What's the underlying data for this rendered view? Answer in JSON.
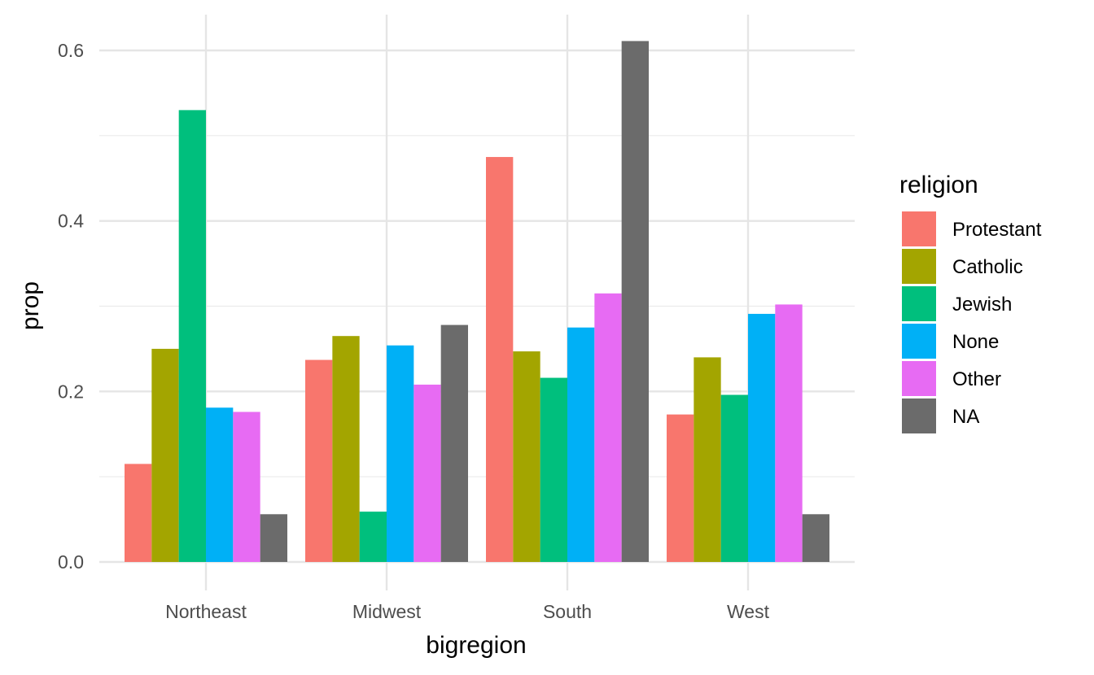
{
  "chart_data": {
    "type": "bar",
    "xlabel": "bigregion",
    "ylabel": "prop",
    "categories": [
      "Northeast",
      "Midwest",
      "South",
      "West"
    ],
    "ylim": [
      0,
      0.62
    ],
    "yticks": [
      0.0,
      0.2,
      0.4,
      0.6
    ],
    "ytick_labels": [
      "0.0",
      "0.2",
      "0.4",
      "0.6"
    ],
    "grid": true,
    "legend": {
      "title": "religion",
      "position": "right"
    },
    "series": [
      {
        "name": "Protestant",
        "color": "#F8766D",
        "values": [
          0.115,
          0.237,
          0.475,
          0.173
        ]
      },
      {
        "name": "Catholic",
        "color": "#A3A500",
        "values": [
          0.25,
          0.265,
          0.247,
          0.24
        ]
      },
      {
        "name": "Jewish",
        "color": "#00BF7D",
        "values": [
          0.53,
          0.059,
          0.216,
          0.196
        ]
      },
      {
        "name": "None",
        "color": "#00B0F6",
        "values": [
          0.181,
          0.254,
          0.275,
          0.291
        ]
      },
      {
        "name": "Other",
        "color": "#E76BF3",
        "values": [
          0.176,
          0.208,
          0.315,
          0.302
        ]
      },
      {
        "name": "NA",
        "color": "#6B6B6B",
        "values": [
          0.056,
          0.278,
          0.611,
          0.056
        ]
      }
    ]
  }
}
